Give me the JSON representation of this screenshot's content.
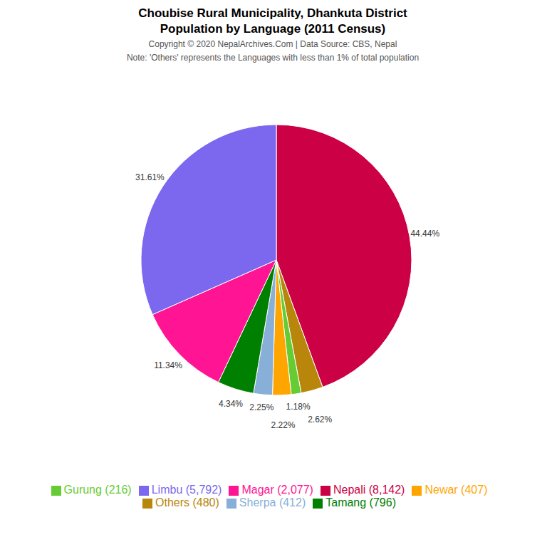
{
  "chart_data": {
    "type": "pie",
    "title": "Choubise Rural Municipality, Dhankuta District",
    "subtitle": "Population by Language (2011 Census)",
    "annotations": [
      "Copyright © 2020 NepalArchives.Com | Data Source: CBS, Nepal",
      "Note: 'Others' represents the Languages with less than 1% of total population"
    ],
    "categories": [
      "Nepali (8,142)",
      "Others (480)",
      "Gurung (216)",
      "Newar (407)",
      "Sherpa (412)",
      "Tamang (796)",
      "Magar (2,077)",
      "Limbu (5,792)"
    ],
    "values": [
      44.44,
      2.62,
      1.18,
      2.22,
      2.25,
      4.34,
      11.34,
      31.61
    ],
    "value_labels": [
      "44.44%",
      "2.62%",
      "1.18%",
      "2.22%",
      "2.25%",
      "4.34%",
      "11.34%",
      "31.61%"
    ],
    "colors": [
      "#cc0044",
      "#b8860b",
      "#66cc33",
      "#ffa500",
      "#87afd7",
      "#008000",
      "#ff1493",
      "#7b68ee"
    ],
    "data_labels": true,
    "legend": "bottom"
  }
}
